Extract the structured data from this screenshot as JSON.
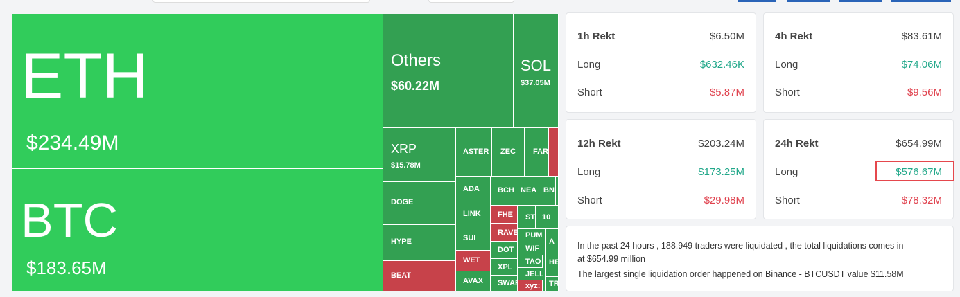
{
  "treemap": {
    "tiles": [
      {
        "label": "ETH",
        "value": "$234.49M"
      },
      {
        "label": "BTC",
        "value": "$183.65M"
      },
      {
        "label": "Others",
        "value": "$60.22M"
      },
      {
        "label": "SOL",
        "value": "$37.05M"
      },
      {
        "label": "XRP",
        "value": "$15.78M"
      },
      {
        "label": "DOGE"
      },
      {
        "label": "HYPE"
      },
      {
        "label": "BEAT"
      },
      {
        "label": "ASTER"
      },
      {
        "label": "ZEC"
      },
      {
        "label": "FAR"
      },
      {
        "label": "ADA"
      },
      {
        "label": "LINK"
      },
      {
        "label": "SUI"
      },
      {
        "label": "WET"
      },
      {
        "label": "AVAX"
      },
      {
        "label": "BCH"
      },
      {
        "label": "NEA"
      },
      {
        "label": "BN"
      },
      {
        "label": "FHE"
      },
      {
        "label": "RAVE"
      },
      {
        "label": "DOT"
      },
      {
        "label": "XPL"
      },
      {
        "label": "SWAR"
      },
      {
        "label": "ST"
      },
      {
        "label": "10"
      },
      {
        "label": "PUM"
      },
      {
        "label": "A"
      },
      {
        "label": "WIF"
      },
      {
        "label": "TAO"
      },
      {
        "label": "JELL"
      },
      {
        "label": "xyz:"
      },
      {
        "label": "HE"
      },
      {
        "label": "TR"
      }
    ]
  },
  "stats": {
    "cards": [
      {
        "title": "1h Rekt",
        "total": "$6.50M",
        "long_label": "Long",
        "long": "$632.46K",
        "short_label": "Short",
        "short": "$5.87M"
      },
      {
        "title": "4h Rekt",
        "total": "$83.61M",
        "long_label": "Long",
        "long": "$74.06M",
        "short_label": "Short",
        "short": "$9.56M"
      },
      {
        "title": "12h Rekt",
        "total": "$203.24M",
        "long_label": "Long",
        "long": "$173.25M",
        "short_label": "Short",
        "short": "$29.98M"
      },
      {
        "title": "24h Rekt",
        "total": "$654.99M",
        "long_label": "Long",
        "long": "$576.67M",
        "short_label": "Short",
        "short": "$78.32M"
      }
    ]
  },
  "summary": {
    "lines": [
      "In the past 24 hours , 188,949 traders were liquidated , the total liquidations comes in",
      "at $654.99 million",
      "The largest single liquidation order happened on Binance - BTCUSDT value $11.58M"
    ]
  }
}
